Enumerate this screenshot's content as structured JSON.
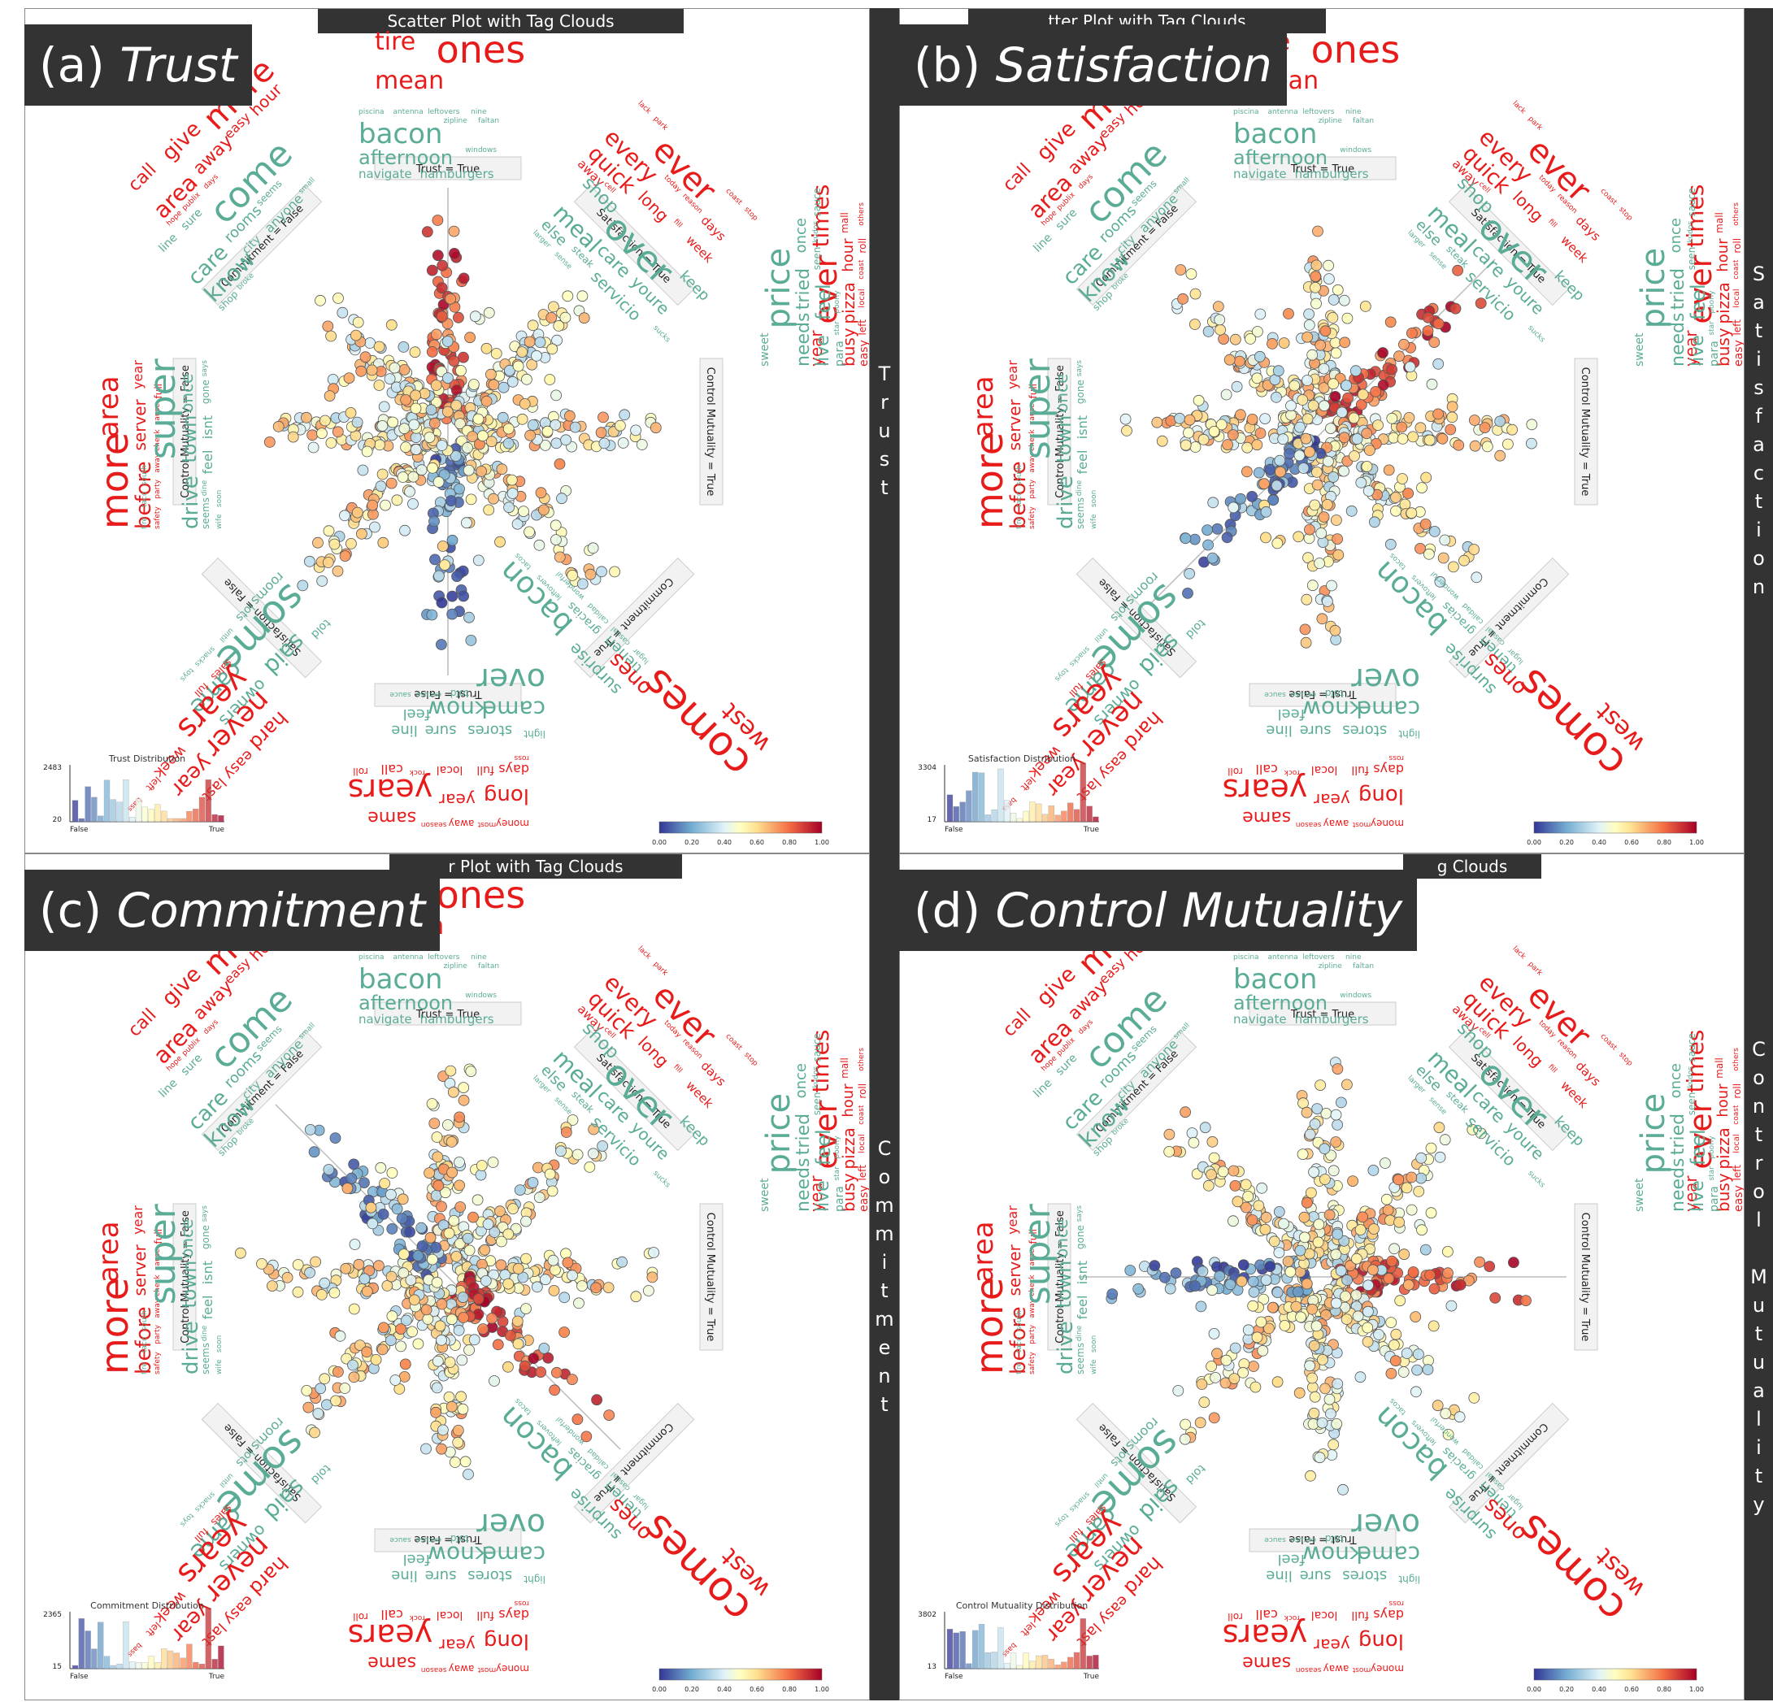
{
  "plot_title": "Scatter Plot with Tag Clouds",
  "colors": {
    "positive_word": "#e81b1b",
    "neutral_word": "#5aac97",
    "panel_bar": "#333333",
    "axis_box": "#f2f2f2"
  },
  "panels": [
    {
      "letter": "(a) ",
      "name": "Trust",
      "side_label": "T\nr\nu\ns\nt",
      "title_visible": "Scatter Plot with Tag Clouds",
      "focus": "Trust",
      "hist": {
        "title": "Trust Distribution",
        "ymax": "2483",
        "ymin": "20",
        "xmin": "False",
        "xmax": "True"
      }
    },
    {
      "letter": "(b) ",
      "name": "Satisfaction",
      "side_label": "S\na\nt\ni\ns\nf\na\nc\nt\ni\no\nn",
      "title_visible": "tter Plot with Tag Clouds",
      "focus": "Satisfaction",
      "hist": {
        "title": "Satisfaction Distribution",
        "ymax": "3304",
        "ymin": "17",
        "xmin": "False",
        "xmax": "True"
      }
    },
    {
      "letter": "(c) ",
      "name": "Commitment",
      "side_label": "C\no\nm\nm\ni\nt\nm\ne\nn\nt",
      "title_visible": "r Plot with Tag Clouds",
      "focus": "Commitment",
      "hist": {
        "title": "Commitment Distribution",
        "ymax": "2365",
        "ymin": "15",
        "xmin": "False",
        "xmax": "True"
      }
    },
    {
      "letter": "(d) ",
      "name": "Control Mutuality",
      "side_label": "C\no\nn\nt\nr\no\nl\n\nM\nu\nt\nu\na\nl\ni\nt\ny",
      "title_visible": "g Clouds",
      "focus": "Control Mutuality",
      "hist": {
        "title": "Control Mutuality Distribution",
        "ymax": "3802",
        "ymin": "13",
        "xmin": "False",
        "xmax": "True"
      }
    }
  ],
  "colorbar_ticks": [
    "0.00",
    "0.20",
    "0.40",
    "0.60",
    "0.80",
    "1.00"
  ],
  "axes": [
    {
      "label": "Trust = True",
      "angle": 90
    },
    {
      "label": "Satisfaction = True",
      "angle": 45
    },
    {
      "label": "Control Mutuality = True",
      "angle": 0
    },
    {
      "label": "Commitment = True",
      "angle": -45
    },
    {
      "label": "Trust = False",
      "angle": -90
    },
    {
      "label": "Satisfaction = False",
      "angle": -135
    },
    {
      "label": "Control Mutuality = False",
      "angle": 180
    },
    {
      "label": "Commitment = False",
      "angle": 135
    }
  ],
  "clouds": {
    "top_center_red": [
      "tire",
      "ones",
      "mean"
    ],
    "n_green": [
      "piscina",
      "antenna",
      "leftovers",
      "nine",
      "bacon",
      "zipline",
      "faltan",
      "afternoon",
      "windows",
      "navigate",
      "hamburgers"
    ],
    "ne_red": [
      "lack",
      "park",
      "ever",
      "coast",
      "stop",
      "every",
      "today",
      "reason",
      "days",
      "quick",
      "long",
      "fill",
      "week",
      "away",
      "cell"
    ],
    "ne_green": [
      "shop",
      "over",
      "keep",
      "meal",
      "care",
      "youre",
      "else",
      "steak",
      "servicio",
      "sucks",
      "larger",
      "sense"
    ],
    "nw_red": [
      "call",
      "give",
      "more",
      "area",
      "away",
      "easy",
      "hour",
      "hope",
      "publix",
      "days"
    ],
    "nw_green": [
      "line",
      "sure",
      "come",
      "care",
      "rooms",
      "seems",
      "know",
      "city",
      "anyone",
      "small",
      "shop",
      "broke"
    ],
    "e_red": [
      "year",
      "ever",
      "times",
      "busy",
      "pizza",
      "hour",
      "mall",
      "easy",
      "left",
      "local",
      "coast",
      "roll",
      "others",
      "passes",
      "across"
    ],
    "e_green": [
      "sweet",
      "price",
      "needs",
      "tried",
      "once",
      "live",
      "feel",
      "seen",
      "kudos",
      "sauce",
      "para",
      "star",
      "poorly"
    ],
    "w_red": [
      "more",
      "area",
      "before",
      "server",
      "year",
      "safety",
      "party",
      "away",
      "check",
      "cause",
      "full"
    ],
    "w_green": [
      "tire",
      "taco",
      "south",
      "super",
      "drive",
      "town",
      "once",
      "seems",
      "dine",
      "feel",
      "isnt",
      "gone",
      "says",
      "wife",
      "soon"
    ],
    "s_green": [
      "light",
      "stores",
      "sure",
      "line",
      "came",
      "know",
      "feel",
      "over",
      "told",
      "excuse",
      "sauce"
    ],
    "s_red": [
      "money",
      "most",
      "away",
      "season",
      "same",
      "long",
      "year",
      "years",
      "days",
      "full",
      "local",
      "rock",
      "call",
      "roll",
      "ross"
    ],
    "sw_green": [
      "told",
      "said",
      "owners",
      "some",
      "came",
      "rooms",
      "lots",
      "until",
      "snacks",
      "toys"
    ],
    "sw_red": [
      "hard",
      "easy",
      "last",
      "never",
      "year",
      "years",
      "week",
      "left",
      "bass",
      "sales",
      "full"
    ],
    "se_green": [
      "surprise",
      "bacon",
      "tienen",
      "gracias",
      "leftovers",
      "tacos",
      "lugar",
      "casual",
      "calidad",
      "wonderful"
    ],
    "se_red": [
      "comes",
      "ones",
      "west"
    ]
  }
}
